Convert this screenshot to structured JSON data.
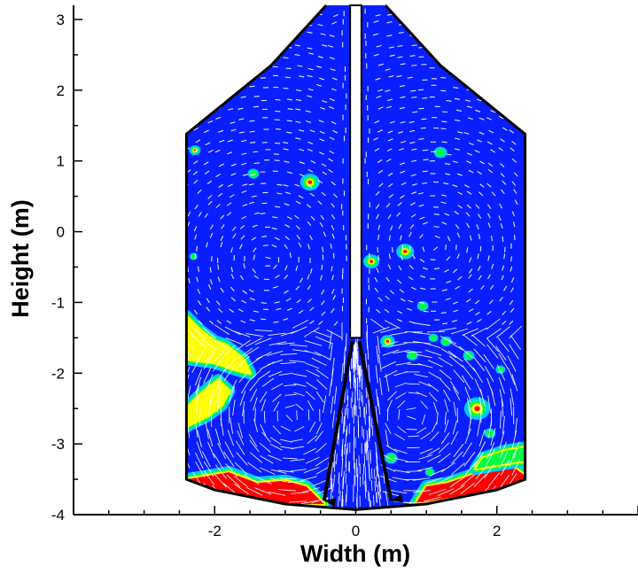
{
  "chart_data": {
    "type": "heatmap",
    "title": "",
    "xlabel": "Width (m)",
    "ylabel": "Height (m)",
    "xlim": [
      -4,
      4
    ],
    "ylim": [
      -4,
      3.2
    ],
    "x_ticks": [
      "-2",
      "0",
      "2"
    ],
    "y_ticks": [
      "3",
      "2",
      "1",
      "0",
      "-1",
      "-2",
      "-3",
      "-4"
    ],
    "grid": false,
    "legend": "none",
    "vessel_outline": [
      [
        -0.42,
        3.2
      ],
      [
        -1.2,
        2.35
      ],
      [
        -2.4,
        1.38
      ],
      [
        -2.4,
        -3.5
      ],
      [
        -2.0,
        -3.65
      ],
      [
        -1.0,
        -3.85
      ],
      [
        0,
        -3.93
      ],
      [
        1.0,
        -3.85
      ],
      [
        2.0,
        -3.65
      ],
      [
        2.4,
        -3.5
      ],
      [
        2.4,
        1.38
      ],
      [
        1.2,
        2.35
      ],
      [
        0.42,
        3.2
      ]
    ],
    "central_pipe": {
      "x": [
        -0.08,
        0.08
      ],
      "y_bottom": -1.5,
      "y_top": 3.2
    },
    "jet_arrows": [
      {
        "from": [
          -0.05,
          -1.55
        ],
        "to": [
          -0.45,
          -3.8
        ]
      },
      {
        "from": [
          0.05,
          -1.55
        ],
        "to": [
          0.5,
          -3.8
        ]
      }
    ],
    "flow_vortices": [
      {
        "center": [
          -1.25,
          -0.4
        ],
        "radius": 0.9,
        "direction": "cw"
      },
      {
        "center": [
          1.1,
          -0.2
        ],
        "radius": 0.9,
        "direction": "ccw"
      },
      {
        "center": [
          -0.9,
          -2.6
        ],
        "radius": 0.8,
        "direction": "ccw"
      },
      {
        "center": [
          0.8,
          -2.6
        ],
        "radius": 0.7,
        "direction": "cw"
      }
    ],
    "concentration_spots": [
      {
        "x": -1.45,
        "y": 0.82,
        "r": 0.07,
        "level": 0.35
      },
      {
        "x": -0.65,
        "y": 0.7,
        "r": 0.12,
        "level": 0.8
      },
      {
        "x": 1.2,
        "y": 1.12,
        "r": 0.08,
        "level": 0.45
      },
      {
        "x": 0.7,
        "y": -0.28,
        "r": 0.11,
        "level": 0.75
      },
      {
        "x": 0.22,
        "y": -0.42,
        "r": 0.1,
        "level": 0.55
      },
      {
        "x": 0.95,
        "y": -1.05,
        "r": 0.07,
        "level": 0.4
      },
      {
        "x": 1.1,
        "y": -1.5,
        "r": 0.06,
        "level": 0.4
      },
      {
        "x": 1.28,
        "y": -1.55,
        "r": 0.07,
        "level": 0.4
      },
      {
        "x": 0.8,
        "y": -1.75,
        "r": 0.07,
        "level": 0.5
      },
      {
        "x": 0.45,
        "y": -1.55,
        "r": 0.09,
        "level": 0.65
      },
      {
        "x": 1.6,
        "y": -1.75,
        "r": 0.07,
        "level": 0.35
      },
      {
        "x": 2.05,
        "y": -1.95,
        "r": 0.06,
        "level": 0.35
      },
      {
        "x": 1.72,
        "y": -2.5,
        "r": 0.16,
        "level": 0.8
      },
      {
        "x": 1.9,
        "y": -2.85,
        "r": 0.07,
        "level": 0.4
      },
      {
        "x": -2.28,
        "y": 1.15,
        "r": 0.07,
        "level": 0.6
      },
      {
        "x": -2.3,
        "y": -0.35,
        "r": 0.05,
        "level": 0.35
      },
      {
        "x": 0.5,
        "y": -3.2,
        "r": 0.08,
        "level": 0.45
      },
      {
        "x": 1.05,
        "y": -3.4,
        "r": 0.06,
        "level": 0.4
      }
    ],
    "deposit_regions": [
      {
        "points": [
          [
            -2.4,
            -3.5
          ],
          [
            -2.1,
            -3.45
          ],
          [
            -1.8,
            -3.4
          ],
          [
            -1.4,
            -3.55
          ],
          [
            -1.0,
            -3.52
          ],
          [
            -0.7,
            -3.6
          ],
          [
            -0.45,
            -3.85
          ],
          [
            -1.0,
            -3.85
          ],
          [
            -2.0,
            -3.65
          ]
        ],
        "level": 1.0
      },
      {
        "points": [
          [
            0.85,
            -3.84
          ],
          [
            1.0,
            -3.6
          ],
          [
            1.3,
            -3.55
          ],
          [
            1.6,
            -3.45
          ],
          [
            1.9,
            -3.35
          ],
          [
            2.2,
            -3.3
          ],
          [
            2.4,
            -3.45
          ],
          [
            2.4,
            -3.5
          ],
          [
            2.0,
            -3.65
          ]
        ],
        "level": 1.0
      },
      {
        "points": [
          [
            -2.4,
            -1.2
          ],
          [
            -2.2,
            -1.4
          ],
          [
            -2.0,
            -1.55
          ],
          [
            -1.85,
            -1.6
          ],
          [
            -1.6,
            -1.8
          ],
          [
            -1.5,
            -2.0
          ],
          [
            -1.7,
            -1.95
          ],
          [
            -2.0,
            -1.85
          ],
          [
            -2.4,
            -1.8
          ]
        ],
        "level": 0.75
      },
      {
        "points": [
          [
            -2.4,
            -2.5
          ],
          [
            -2.2,
            -2.3
          ],
          [
            -1.95,
            -2.1
          ],
          [
            -1.8,
            -2.25
          ],
          [
            -1.9,
            -2.45
          ],
          [
            -2.1,
            -2.6
          ],
          [
            -2.4,
            -2.75
          ]
        ],
        "level": 0.75
      },
      {
        "points": [
          [
            2.4,
            -3.05
          ],
          [
            2.1,
            -3.1
          ],
          [
            1.8,
            -3.2
          ],
          [
            1.7,
            -3.35
          ],
          [
            2.0,
            -3.3
          ],
          [
            2.3,
            -3.25
          ],
          [
            2.4,
            -3.25
          ]
        ],
        "level": 0.6
      }
    ],
    "color_scale": [
      "#0000ff",
      "#00c8ff",
      "#00ff40",
      "#ffff00",
      "#ff0000"
    ]
  }
}
